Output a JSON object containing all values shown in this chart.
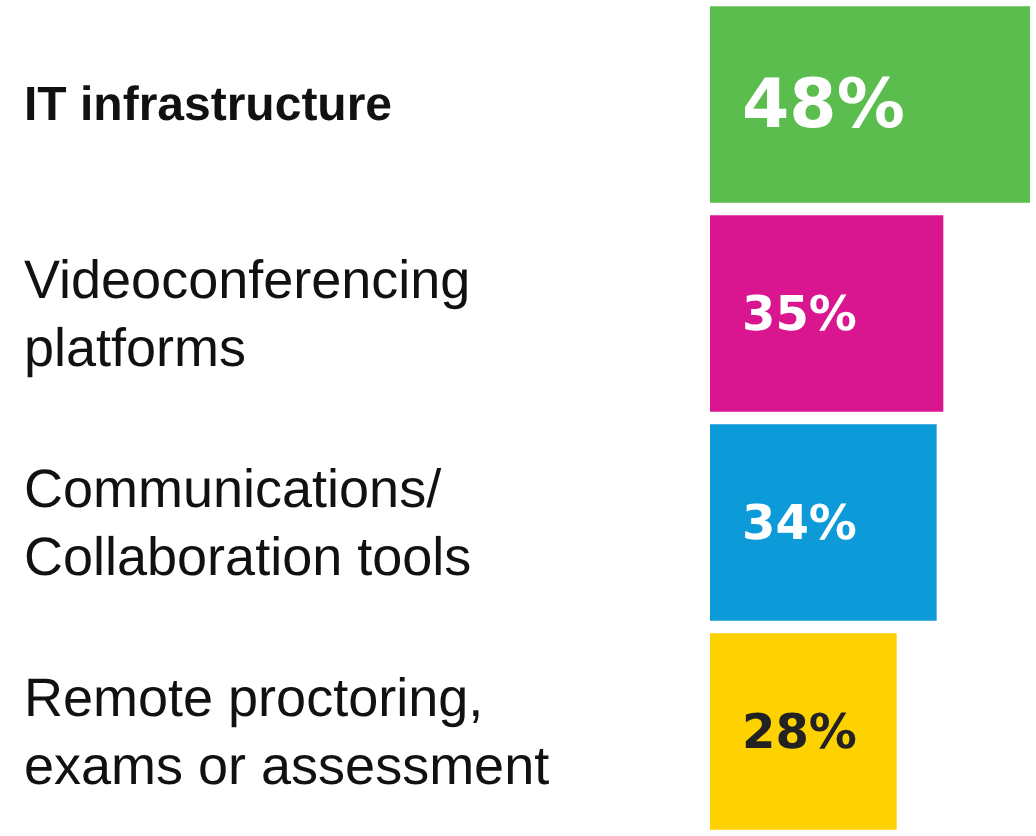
{
  "chart_data": {
    "type": "bar",
    "orientation": "horizontal",
    "categories": [
      "IT infrastructure",
      "Videoconferencing platforms",
      "Communications/ Collaboration tools",
      "Remote proctoring, exams or assessment"
    ],
    "values": [
      48,
      35,
      34,
      28
    ],
    "colors": [
      "#5bbd4e",
      "#d9168f",
      "#0d9ad9",
      "#fed100"
    ],
    "value_labels": [
      "48%",
      "35%",
      "34%",
      "28%"
    ]
  }
}
